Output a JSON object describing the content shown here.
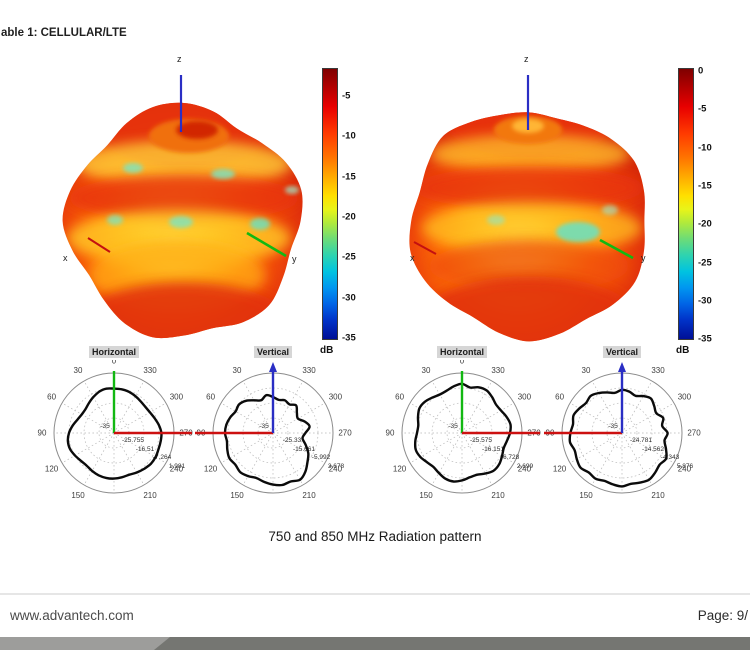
{
  "page": {
    "table_label": "able 1: CELLULAR/LTE",
    "caption": "750 and 850 MHz Radiation pattern",
    "footer": {
      "website": "www.advantech.com",
      "page_indicator": "Page: 9/"
    }
  },
  "colors": {
    "axis_x_red": "#cc1010",
    "axis_y_green": "#12b812",
    "axis_z_blue": "#2a2ec4",
    "polar_curve": "#0b0b0b",
    "polar_grid": "#b9b9b9",
    "polar_outer": "#8c8c8c",
    "title_bg": "#d6d6d6",
    "footer_bar_light": "#9d9d9b",
    "footer_bar_dark": "#757672"
  },
  "chart_data": [
    {
      "type": "3d-radiation-pattern",
      "frequency": "750 MHz",
      "colormap": "jet",
      "axes": {
        "x": "x",
        "y": "y",
        "z": "z"
      },
      "colorbar": {
        "unit": "dB",
        "ticks": [
          "-5",
          "-10",
          "-15",
          "-20",
          "-25",
          "-30",
          "-35"
        ],
        "range": [
          -35,
          0
        ]
      },
      "surface_radii": [
        1.0,
        0.96,
        0.9,
        0.93,
        0.99,
        1.02,
        0.98,
        0.93,
        0.96,
        1.01,
        0.99,
        0.94,
        0.97,
        1.02,
        1.0,
        0.95,
        0.92,
        0.97,
        1.02,
        0.99,
        0.94,
        0.91,
        0.96,
        1.0
      ]
    },
    {
      "type": "3d-radiation-pattern",
      "frequency": "850 MHz",
      "colormap": "jet",
      "axes": {
        "x": "x",
        "y": "y",
        "z": "z"
      },
      "colorbar": {
        "unit": "dB",
        "ticks": [
          "0",
          "-5",
          "-10",
          "-15",
          "-20",
          "-25",
          "-30",
          "-35"
        ],
        "range": [
          -35,
          0
        ]
      },
      "surface_radii": [
        0.92,
        0.9,
        0.93,
        0.98,
        1.02,
        1.0,
        0.97,
        1.0,
        1.03,
        1.0,
        0.96,
        0.99,
        1.02,
        0.98,
        0.94,
        0.97,
        1.01,
        1.03,
        0.99,
        0.95,
        0.98,
        1.02,
        0.97,
        0.93
      ]
    },
    {
      "type": "polar",
      "title": "Horizontal",
      "frequency": "750 MHz",
      "axis_style": "horizontal",
      "angle_ticks": [
        "0",
        "30",
        "60",
        "90",
        "120",
        "150",
        "210",
        "240",
        "270",
        "300",
        "330"
      ],
      "radial_ticks": [
        "-35",
        "-25.755",
        "-16.51",
        "-7.264",
        "1.981"
      ],
      "r": [
        0.74,
        0.75,
        0.73,
        0.69,
        0.65,
        0.62,
        0.62,
        0.65,
        0.7,
        0.75,
        0.78,
        0.78,
        0.75,
        0.72,
        0.71,
        0.73,
        0.75,
        0.76,
        0.76,
        0.75,
        0.74,
        0.76,
        0.78,
        0.8,
        0.8,
        0.79,
        0.79,
        0.79,
        0.76,
        0.72,
        0.69,
        0.68,
        0.69,
        0.71,
        0.73,
        0.74
      ]
    },
    {
      "type": "polar",
      "title": "Vertical",
      "frequency": "750 MHz",
      "axis_style": "vertical",
      "angle_ticks": [
        "30",
        "60",
        "90",
        "120",
        "150",
        "210",
        "240",
        "270",
        "300",
        "330"
      ],
      "radial_ticks": [
        "-35",
        "-25.33",
        "-15.661",
        "-5.992",
        "3.678"
      ],
      "r": [
        0.6,
        0.64,
        0.58,
        0.63,
        0.7,
        0.74,
        0.72,
        0.76,
        0.79,
        0.8,
        0.78,
        0.81,
        0.84,
        0.82,
        0.85,
        0.83,
        0.8,
        0.83,
        0.86,
        0.88,
        0.86,
        0.9,
        0.84,
        0.75,
        0.68,
        0.58,
        0.5,
        0.54,
        0.62,
        0.56,
        0.48,
        0.52,
        0.6,
        0.55,
        0.58,
        0.56
      ]
    },
    {
      "type": "polar",
      "title": "Horizontal",
      "frequency": "850 MHz",
      "axis_style": "horizontal",
      "angle_ticks": [
        "0",
        "30",
        "60",
        "90",
        "120",
        "150",
        "210",
        "240",
        "270",
        "300",
        "330"
      ],
      "radial_ticks": [
        "-35",
        "-25.575",
        "-16.151",
        "-6.728",
        "2.699"
      ],
      "r": [
        0.82,
        0.79,
        0.75,
        0.74,
        0.77,
        0.81,
        0.82,
        0.78,
        0.74,
        0.75,
        0.79,
        0.82,
        0.8,
        0.76,
        0.74,
        0.77,
        0.81,
        0.82,
        0.79,
        0.75,
        0.74,
        0.78,
        0.82,
        0.81,
        0.77,
        0.74,
        0.76,
        0.8,
        0.82,
        0.79,
        0.75,
        0.74,
        0.78,
        0.82,
        0.81,
        0.77
      ]
    },
    {
      "type": "polar",
      "title": "Vertical",
      "frequency": "850 MHz",
      "axis_style": "vertical",
      "angle_ticks": [
        "30",
        "60",
        "90",
        "120",
        "150",
        "210",
        "240",
        "270",
        "300",
        "330"
      ],
      "radial_ticks": [
        "-35",
        "-24.781",
        "-14.562",
        "-4.343",
        "5.876"
      ],
      "r": [
        0.72,
        0.68,
        0.72,
        0.77,
        0.81,
        0.78,
        0.82,
        0.86,
        0.83,
        0.86,
        0.88,
        0.84,
        0.87,
        0.9,
        0.86,
        0.88,
        0.85,
        0.87,
        0.89,
        0.86,
        0.88,
        0.9,
        0.86,
        0.82,
        0.85,
        0.78,
        0.72,
        0.76,
        0.68,
        0.73,
        0.66,
        0.7,
        0.75,
        0.71,
        0.66,
        0.7
      ]
    }
  ]
}
